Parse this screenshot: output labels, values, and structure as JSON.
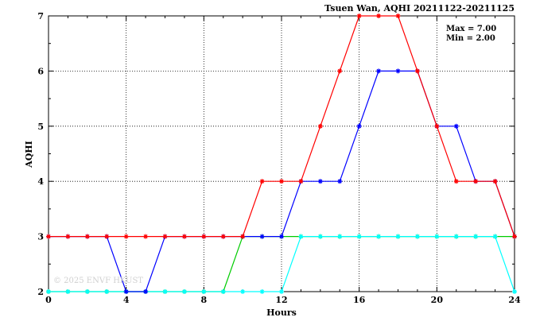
{
  "chart_data": {
    "type": "line",
    "title": "Tsuen Wan, AQHI 20211122-20211125",
    "xlabel": "Hours",
    "ylabel": "AQHI",
    "xlim": [
      0,
      24
    ],
    "ylim": [
      2,
      7
    ],
    "xticks": [
      0,
      4,
      8,
      12,
      16,
      20,
      24
    ],
    "yticks": [
      2,
      3,
      4,
      5,
      6,
      7
    ],
    "grid": true,
    "stats": {
      "max": "Max = 7.00",
      "min": "Min = 2.00"
    },
    "watermark": "© 2025 ENVF HKUST",
    "x": [
      0,
      1,
      2,
      3,
      4,
      5,
      6,
      7,
      8,
      9,
      10,
      11,
      12,
      13,
      14,
      15,
      16,
      17,
      18,
      19,
      20,
      21,
      22,
      23,
      24
    ],
    "series": [
      {
        "color": "#00cc00",
        "values": [
          2,
          2,
          2,
          2,
          2,
          2,
          2,
          2,
          2,
          2,
          3,
          3,
          3,
          3,
          3,
          3,
          3,
          3,
          3,
          3,
          3,
          3,
          3,
          3,
          3
        ]
      },
      {
        "color": "#00ffff",
        "values": [
          2,
          2,
          2,
          2,
          2,
          2,
          2,
          2,
          2,
          2,
          2,
          2,
          2,
          3,
          3,
          3,
          3,
          3,
          3,
          3,
          3,
          3,
          3,
          3,
          2
        ]
      },
      {
        "color": "#0000ff",
        "values": [
          3,
          3,
          3,
          3,
          2,
          2,
          3,
          3,
          3,
          3,
          3,
          3,
          3,
          4,
          4,
          4,
          5,
          6,
          6,
          6,
          5,
          5,
          4,
          4,
          3
        ]
      },
      {
        "color": "#ff0000",
        "values": [
          3,
          3,
          3,
          3,
          3,
          3,
          3,
          3,
          3,
          3,
          3,
          4,
          4,
          4,
          5,
          6,
          7,
          7,
          7,
          6,
          5,
          4,
          4,
          4,
          3
        ]
      }
    ]
  }
}
